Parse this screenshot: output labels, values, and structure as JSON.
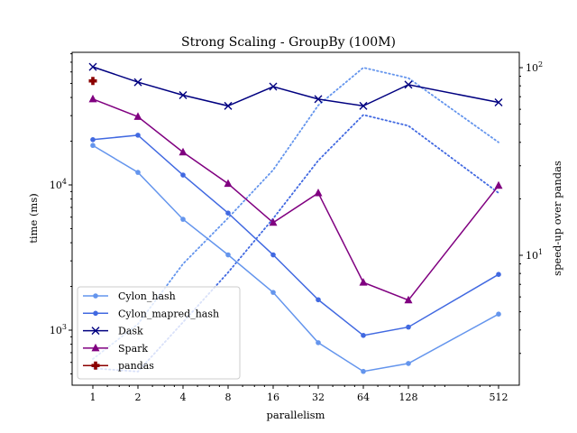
{
  "chart_data": {
    "type": "line",
    "title": "Strong Scaling - GroupBy (100M)",
    "xlabel": "parallelism",
    "ylabel": "time (ms)",
    "y2label": "speed-up over pandas",
    "x_scale": "log2",
    "y_scale": "log",
    "y2_scale": "log",
    "x": [
      1,
      2,
      4,
      8,
      16,
      32,
      64,
      128,
      512
    ],
    "x_tick_labels": [
      "1",
      "2",
      "4",
      "8",
      "16",
      "32",
      "64",
      "128",
      "512"
    ],
    "y_tick_labels": [
      "10^3",
      "10^4"
    ],
    "y2_tick_labels": [
      "10^1",
      "10^2"
    ],
    "legend_position": "lower left",
    "series": [
      {
        "name": "Cylon_hash",
        "color": "#6495ed",
        "marker": "circle",
        "values": [
          18700,
          12200,
          5800,
          3300,
          1820,
          820,
          520,
          590,
          1290
        ]
      },
      {
        "name": "Cylon_mapred_hash",
        "color": "#4169e1",
        "marker": "circle",
        "values": [
          20500,
          22000,
          11700,
          6400,
          3300,
          1620,
          920,
          1050,
          2420
        ]
      },
      {
        "name": "Dask",
        "color": "#000080",
        "marker": "x",
        "values": [
          65000,
          51000,
          41500,
          35000,
          47500,
          39000,
          35000,
          49000,
          37000
        ]
      },
      {
        "name": "Spark",
        "color": "#800080",
        "marker": "triangle",
        "values": [
          39000,
          29500,
          16800,
          10200,
          5500,
          8800,
          2130,
          1610,
          9900
        ]
      },
      {
        "name": "pandas",
        "color": "#8b0000",
        "marker": "plus",
        "values": [
          52000,
          null,
          null,
          null,
          null,
          null,
          null,
          null,
          null
        ]
      }
    ],
    "speedup_series": [
      {
        "color": "#6495ed",
        "linestyle": "dotted",
        "values": [
          2.8,
          4.3,
          9.0,
          15.8,
          28.5,
          63,
          100,
          88,
          40
        ]
      },
      {
        "color": "#4169e1",
        "linestyle": "dotted",
        "values": [
          2.5,
          2.4,
          4.4,
          8.1,
          15.7,
          32,
          56,
          49,
          21.5
        ]
      }
    ]
  }
}
